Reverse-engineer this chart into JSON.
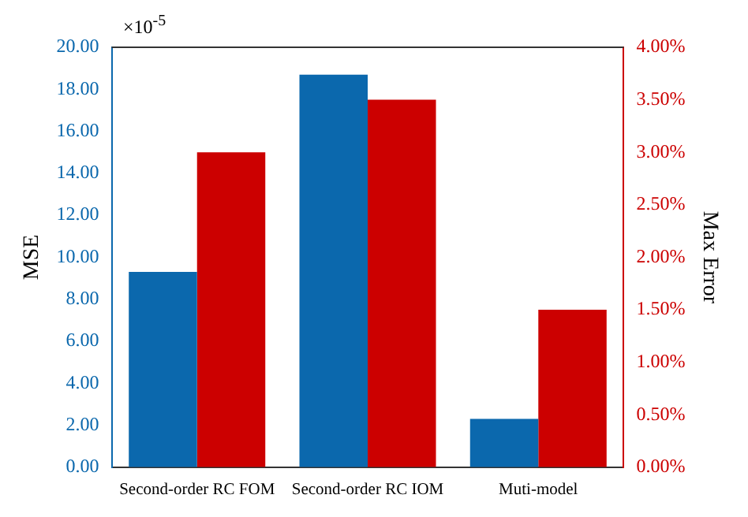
{
  "chart_data": {
    "type": "bar",
    "ylabel": "MSE",
    "y2label": "Max Error",
    "annotations": [
      "×10$^{-5}$"
    ],
    "categories": [
      "Second-order RC FOM",
      "Second-order RC IOM",
      "Muti-model"
    ],
    "series": [
      {
        "color": "#0b68ad",
        "values": [
          9.3,
          18.7,
          2.3
        ]
      },
      {
        "color": "#cc0000",
        "values": [
          3.0,
          3.5,
          1.5
        ],
        "axis": "y2"
      }
    ],
    "ylim": [
      0,
      20
    ],
    "yticks": [
      {
        "value": 0,
        "label": "0.00"
      },
      {
        "value": 2,
        "label": "2.00"
      },
      {
        "value": 4,
        "label": "4.00"
      },
      {
        "value": 6,
        "label": "6.00"
      },
      {
        "value": 8,
        "label": "8.00"
      },
      {
        "value": 10,
        "label": "10.00"
      },
      {
        "value": 12,
        "label": "12.00"
      },
      {
        "value": 14,
        "label": "14.00"
      },
      {
        "value": 16,
        "label": "16.00"
      },
      {
        "value": 18,
        "label": "18.00"
      },
      {
        "value": 20,
        "label": "20.00"
      }
    ],
    "y2lim": [
      0,
      4
    ],
    "y2ticks": [
      {
        "value": 0,
        "label": "0.00%"
      },
      {
        "value": 0.5,
        "label": "0.50%"
      },
      {
        "value": 1,
        "label": "1.00%"
      },
      {
        "value": 1.5,
        "label": "1.50%"
      },
      {
        "value": 2,
        "label": "2.00%"
      },
      {
        "value": 2.5,
        "label": "2.50%"
      },
      {
        "value": 3,
        "label": "3.00%"
      },
      {
        "value": 3.5,
        "label": "3.50%"
      },
      {
        "value": 4,
        "label": "4.00%"
      }
    ],
    "grid": false,
    "legend": false
  }
}
